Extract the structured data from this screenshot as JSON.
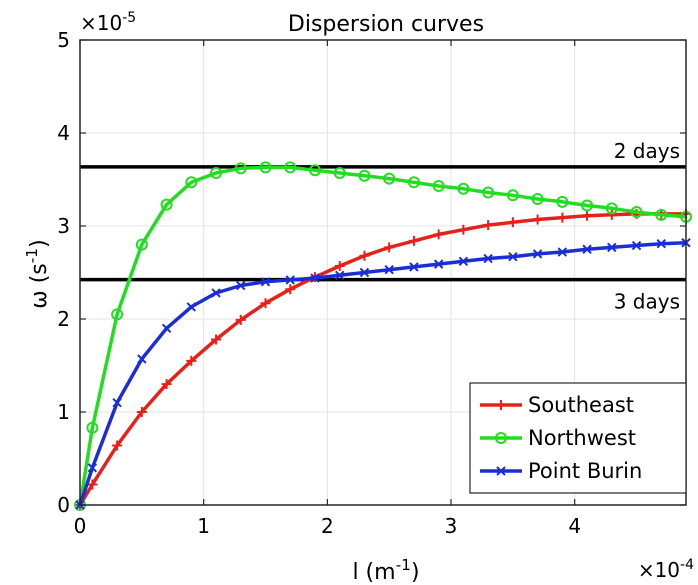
{
  "chart_data": {
    "type": "line",
    "title": "Dispersion curves",
    "xlabel": {
      "base": "l (m",
      "sup": "-1",
      "tail": ")"
    },
    "ylabel": {
      "base": "ω (s",
      "sup": "-1",
      "tail": ")"
    },
    "x_multiplier": {
      "base": "×10",
      "sup": "-4"
    },
    "y_multiplier": {
      "base": "×10",
      "sup": "-5"
    },
    "xlim": [
      0,
      4.9
    ],
    "ylim": [
      0,
      5
    ],
    "xticks": [
      "0",
      "1",
      "2",
      "3",
      "4"
    ],
    "yticks": [
      "0",
      "1",
      "2",
      "3",
      "4",
      "5"
    ],
    "grid": true,
    "legend_position": "bottom-right",
    "reference_lines": [
      {
        "label": "2 days",
        "y": 3.636
      },
      {
        "label": "3 days",
        "y": 2.424
      }
    ],
    "series": [
      {
        "name": "Southeast",
        "color": "#e8201a",
        "marker": "plus",
        "x": [
          0,
          0.1,
          0.3,
          0.5,
          0.7,
          0.9,
          1.1,
          1.3,
          1.5,
          1.7,
          1.9,
          2.1,
          2.3,
          2.5,
          2.7,
          2.9,
          3.1,
          3.3,
          3.5,
          3.7,
          3.9,
          4.1,
          4.3,
          4.5,
          4.7,
          4.9
        ],
        "y": [
          0,
          0.22,
          0.64,
          1.0,
          1.3,
          1.55,
          1.78,
          1.99,
          2.17,
          2.32,
          2.45,
          2.57,
          2.68,
          2.77,
          2.84,
          2.91,
          2.96,
          3.01,
          3.04,
          3.07,
          3.09,
          3.11,
          3.12,
          3.13,
          3.13,
          3.13
        ]
      },
      {
        "name": "Northwest",
        "color": "#22dd22",
        "marker": "circle",
        "x": [
          0,
          0.1,
          0.3,
          0.5,
          0.7,
          0.9,
          1.1,
          1.3,
          1.5,
          1.7,
          1.9,
          2.1,
          2.3,
          2.5,
          2.7,
          2.9,
          3.1,
          3.3,
          3.5,
          3.7,
          3.9,
          4.1,
          4.3,
          4.5,
          4.7,
          4.9
        ],
        "y": [
          0,
          0.83,
          2.05,
          2.8,
          3.23,
          3.47,
          3.57,
          3.62,
          3.63,
          3.63,
          3.6,
          3.57,
          3.54,
          3.51,
          3.47,
          3.43,
          3.4,
          3.36,
          3.33,
          3.29,
          3.26,
          3.22,
          3.19,
          3.15,
          3.12,
          3.1
        ]
      },
      {
        "name": "Point Burin",
        "color": "#1a2ed8",
        "marker": "x",
        "x": [
          0,
          0.1,
          0.3,
          0.5,
          0.7,
          0.9,
          1.1,
          1.3,
          1.5,
          1.7,
          1.9,
          2.1,
          2.3,
          2.5,
          2.7,
          2.9,
          3.1,
          3.3,
          3.5,
          3.7,
          3.9,
          4.1,
          4.3,
          4.5,
          4.7,
          4.9
        ],
        "y": [
          0,
          0.4,
          1.1,
          1.57,
          1.9,
          2.13,
          2.28,
          2.36,
          2.4,
          2.42,
          2.44,
          2.47,
          2.5,
          2.53,
          2.56,
          2.59,
          2.62,
          2.65,
          2.67,
          2.7,
          2.72,
          2.75,
          2.77,
          2.79,
          2.81,
          2.82
        ]
      }
    ]
  }
}
